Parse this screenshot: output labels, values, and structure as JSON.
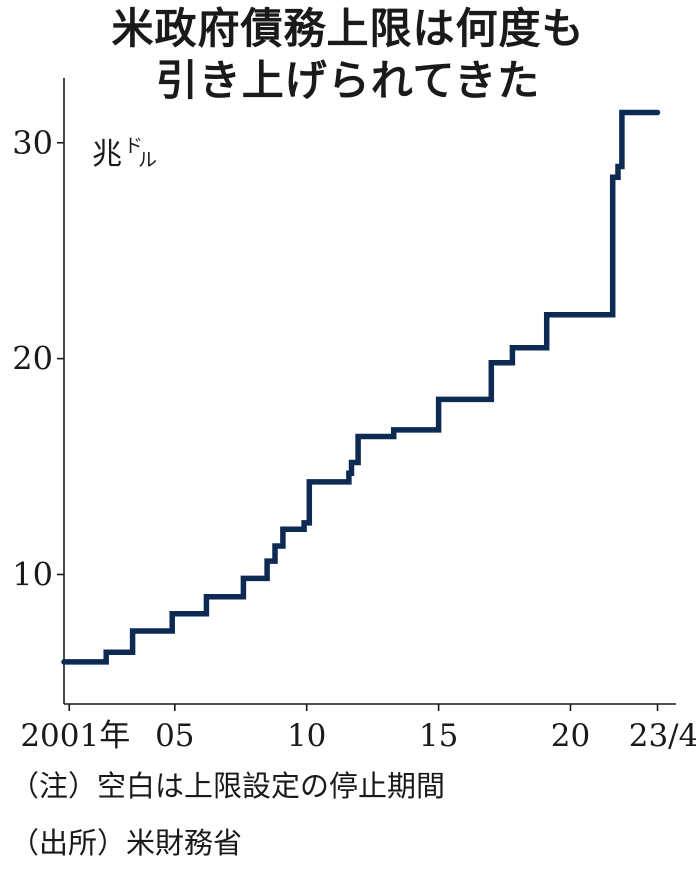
{
  "title_line1": "米政府債務上限は何度も",
  "title_line2": "引き上げられてきた",
  "notes": {
    "note": "（注）空白は上限設定の停止期間",
    "source": "（出所）米財務省"
  },
  "chart_data": {
    "type": "line",
    "step": true,
    "title": "米政府債務上限は何度も引き上げられてきた",
    "unit_main": "兆",
    "unit_sub": "ドル",
    "ylim": [
      4,
      33
    ],
    "xlim": [
      2000.8,
      2024.0
    ],
    "yticks": [
      10,
      20,
      30
    ],
    "xticks": [
      {
        "value": 2001,
        "label": "2001年"
      },
      {
        "value": 2005,
        "label": "05"
      },
      {
        "value": 2010,
        "label": "10"
      },
      {
        "value": 2015,
        "label": "15"
      },
      {
        "value": 2020,
        "label": "20"
      },
      {
        "value": 2023.3,
        "label": "23/4"
      }
    ],
    "color": "#0d2a52",
    "grid": false,
    "series": [
      {
        "values": [
          {
            "x": 2000.8,
            "y": 5.95
          },
          {
            "x": 2002.4,
            "y": 6.4
          },
          {
            "x": 2003.4,
            "y": 7.38
          },
          {
            "x": 2004.9,
            "y": 8.18
          },
          {
            "x": 2006.2,
            "y": 8.97
          },
          {
            "x": 2007.6,
            "y": 9.82
          },
          {
            "x": 2008.5,
            "y": 10.62
          },
          {
            "x": 2008.8,
            "y": 11.32
          },
          {
            "x": 2009.1,
            "y": 12.1
          },
          {
            "x": 2009.9,
            "y": 12.39
          },
          {
            "x": 2010.1,
            "y": 14.29
          },
          {
            "x": 2011.6,
            "y": 14.69
          },
          {
            "x": 2011.7,
            "y": 15.19
          },
          {
            "x": 2011.95,
            "y": 16.39
          },
          {
            "x": 2013.3,
            "y": 16.7
          },
          {
            "x": 2015.0,
            "y": 18.11
          },
          {
            "x": 2017.0,
            "y": 19.81
          },
          {
            "x": 2017.8,
            "y": 20.5
          },
          {
            "x": 2019.1,
            "y": 22.03
          },
          {
            "x": 2021.6,
            "y": 28.4
          },
          {
            "x": 2021.8,
            "y": 28.9
          },
          {
            "x": 2021.95,
            "y": 31.4
          },
          {
            "x": 2023.3,
            "y": 31.4
          }
        ]
      }
    ]
  }
}
